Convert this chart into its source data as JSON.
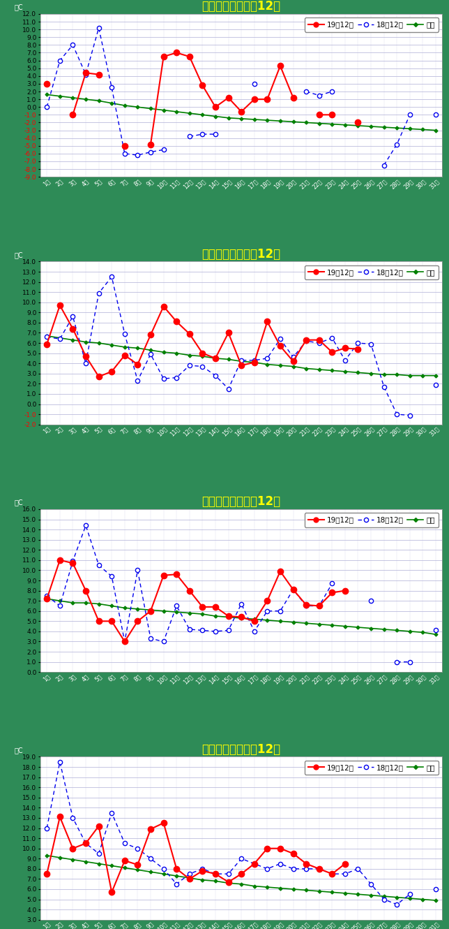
{
  "cities": [
    "札幌",
    "仙台",
    "新潟",
    "東京"
  ],
  "legend_19": "19年12月",
  "legend_18": "18年12月",
  "legend_avg": "平年",
  "days": [
    1,
    2,
    3,
    4,
    5,
    6,
    7,
    8,
    9,
    10,
    11,
    12,
    13,
    14,
    15,
    16,
    17,
    18,
    19,
    20,
    21,
    22,
    23,
    24,
    25,
    26,
    27,
    28,
    29,
    30,
    31
  ],
  "札幌": {
    "y19": [
      3.0,
      null,
      -1.0,
      4.4,
      4.2,
      null,
      -5.0,
      null,
      -4.8,
      6.5,
      7.0,
      6.5,
      2.8,
      0.0,
      1.2,
      -0.6,
      1.0,
      1.0,
      5.3,
      1.2,
      null,
      -1.0,
      -1.0,
      null,
      -2.0,
      null,
      null,
      null,
      null,
      null,
      null
    ],
    "y18": [
      0.0,
      6.0,
      8.0,
      4.2,
      10.2,
      2.5,
      -6.0,
      -6.2,
      -5.8,
      -5.5,
      null,
      -3.8,
      -3.5,
      -3.5,
      null,
      null,
      3.0,
      null,
      null,
      null,
      2.0,
      1.5,
      2.0,
      null,
      null,
      null,
      -7.5,
      -4.8,
      -1.0,
      null,
      -1.0
    ],
    "avg": [
      1.6,
      1.4,
      1.2,
      1.0,
      0.8,
      0.5,
      0.2,
      0.0,
      -0.2,
      -0.4,
      -0.6,
      -0.8,
      -1.0,
      -1.2,
      -1.4,
      -1.5,
      -1.6,
      -1.7,
      -1.8,
      -1.9,
      -2.0,
      -2.1,
      -2.2,
      -2.3,
      -2.4,
      -2.5,
      -2.6,
      -2.7,
      -2.8,
      -2.9,
      -3.0
    ],
    "ylim": [
      -9.0,
      12.0
    ],
    "yticks": [
      -9,
      -8,
      -7,
      -6,
      -5,
      -4,
      -3,
      -2,
      -1,
      0,
      1,
      2,
      3,
      4,
      5,
      6,
      7,
      8,
      9,
      10,
      11,
      12
    ]
  },
  "仙台": {
    "y19": [
      5.9,
      9.7,
      7.4,
      4.7,
      2.7,
      3.2,
      4.8,
      3.9,
      6.8,
      9.6,
      8.1,
      6.9,
      5.0,
      4.5,
      7.0,
      3.8,
      4.1,
      8.1,
      5.7,
      4.2,
      6.3,
      6.3,
      5.1,
      5.5,
      5.4,
      null,
      null,
      null,
      null,
      null,
      null
    ],
    "y18": [
      6.6,
      6.4,
      8.6,
      4.0,
      10.9,
      12.5,
      6.9,
      2.3,
      4.9,
      2.5,
      2.6,
      3.8,
      3.7,
      2.8,
      1.5,
      4.3,
      4.3,
      4.5,
      6.4,
      4.6,
      6.2,
      6.0,
      6.5,
      4.3,
      6.0,
      5.9,
      1.7,
      -1.0,
      -1.1,
      null,
      1.9
    ],
    "avg": [
      6.7,
      6.5,
      6.3,
      6.1,
      6.0,
      5.8,
      5.6,
      5.5,
      5.3,
      5.1,
      5.0,
      4.8,
      4.7,
      4.5,
      4.4,
      4.2,
      4.1,
      3.9,
      3.8,
      3.7,
      3.5,
      3.4,
      3.3,
      3.2,
      3.1,
      3.0,
      2.9,
      2.9,
      2.8,
      2.8,
      2.8
    ],
    "ylim": [
      -2.0,
      14.0
    ],
    "yticks": [
      -2,
      -1,
      0,
      1,
      2,
      3,
      4,
      5,
      6,
      7,
      8,
      9,
      10,
      11,
      12,
      13,
      14
    ]
  },
  "新潟": {
    "y19": [
      7.2,
      11.0,
      10.7,
      8.0,
      5.0,
      5.0,
      3.0,
      5.0,
      6.0,
      9.5,
      9.6,
      8.0,
      6.4,
      6.4,
      5.5,
      5.4,
      5.0,
      7.0,
      9.9,
      8.1,
      6.6,
      6.5,
      7.8,
      8.0,
      null,
      null,
      null,
      null,
      null,
      null,
      null
    ],
    "y18": [
      7.5,
      6.5,
      10.9,
      14.4,
      10.5,
      9.4,
      3.0,
      10.0,
      3.3,
      3.0,
      6.5,
      4.2,
      4.1,
      4.0,
      4.1,
      6.7,
      4.0,
      6.0,
      6.0,
      8.1,
      6.5,
      6.5,
      8.7,
      null,
      null,
      7.0,
      null,
      1.0,
      1.0,
      null,
      4.1
    ],
    "avg": [
      7.2,
      7.0,
      6.8,
      6.8,
      6.7,
      6.5,
      6.3,
      6.2,
      6.1,
      6.0,
      5.9,
      5.8,
      5.7,
      5.5,
      5.4,
      5.3,
      5.2,
      5.1,
      5.0,
      4.9,
      4.8,
      4.7,
      4.6,
      4.5,
      4.4,
      4.3,
      4.2,
      4.1,
      4.0,
      3.9,
      3.7
    ],
    "ylim": [
      0.0,
      16.0
    ],
    "yticks": [
      0,
      1,
      2,
      3,
      4,
      5,
      6,
      7,
      8,
      9,
      10,
      11,
      12,
      13,
      14,
      15,
      16
    ]
  },
  "東京": {
    "y19": [
      7.5,
      13.1,
      10.0,
      10.5,
      12.2,
      5.7,
      8.8,
      8.4,
      11.9,
      12.5,
      8.0,
      7.0,
      7.8,
      7.5,
      6.7,
      7.5,
      8.5,
      10.0,
      10.0,
      9.5,
      8.5,
      8.0,
      7.5,
      8.5,
      null,
      null,
      null,
      null,
      null,
      null,
      null
    ],
    "y18": [
      12.0,
      18.5,
      13.0,
      10.5,
      9.5,
      13.5,
      10.5,
      10.0,
      9.0,
      8.0,
      6.5,
      7.5,
      8.0,
      7.5,
      7.5,
      9.0,
      8.5,
      8.0,
      8.5,
      8.0,
      8.0,
      8.0,
      7.5,
      7.5,
      8.0,
      6.5,
      5.0,
      4.5,
      5.5,
      null,
      6.0
    ],
    "avg": [
      9.3,
      9.1,
      8.9,
      8.7,
      8.5,
      8.3,
      8.1,
      7.9,
      7.7,
      7.5,
      7.3,
      7.1,
      6.9,
      6.8,
      6.6,
      6.5,
      6.3,
      6.2,
      6.1,
      6.0,
      5.9,
      5.8,
      5.7,
      5.6,
      5.5,
      5.4,
      5.3,
      5.2,
      5.1,
      5.0,
      4.9
    ],
    "ylim": [
      3.0,
      19.0
    ],
    "yticks": [
      3,
      4,
      5,
      6,
      7,
      8,
      9,
      10,
      11,
      12,
      13,
      14,
      15,
      16,
      17,
      18,
      19
    ]
  },
  "bg_color": "#2E8B57",
  "plot_bg": "#FFFFFF",
  "title_color": "#FFFF00",
  "color_19": "#FF0000",
  "color_18": "#0000EE",
  "color_avg": "#008000",
  "grid_color": "#BBBBDD",
  "grid_color_x": "#DDDDEE",
  "tick_label_color_x": "#FFFFFF",
  "tick_label_color_y_pos": "#000000",
  "tick_label_color_y_neg": "#FF0000",
  "ylabel_color": "#FFFFFF"
}
